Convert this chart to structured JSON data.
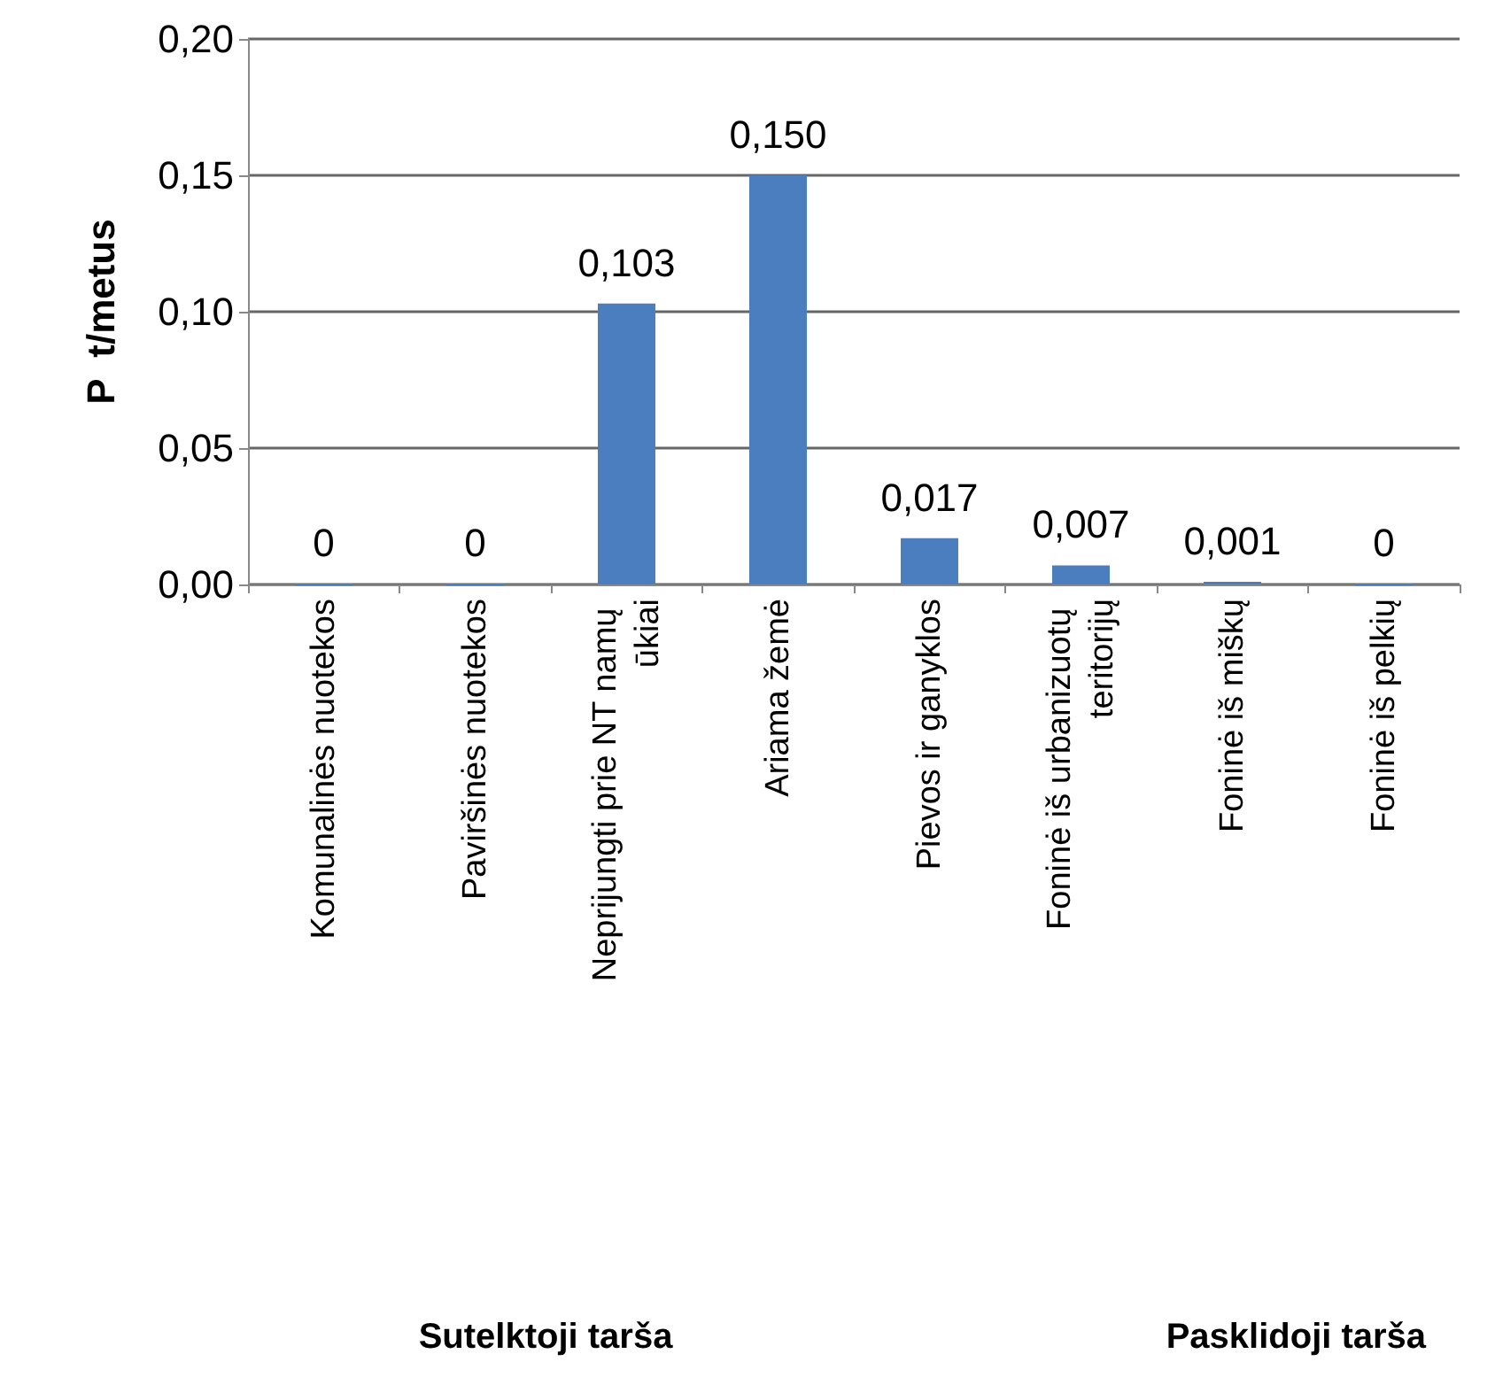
{
  "chart_data": {
    "type": "bar",
    "ylabel": "P  t/metus",
    "categories": [
      "Komunalinės nuotekos",
      "Paviršinės nuotekos",
      "Neprijungti prie NT namų ūkiai",
      "Ariama žemė",
      "Pievos ir ganyklos",
      "Foninė iš urbanizuotų teritorijų",
      "Foninė iš miškų",
      "Foninė iš pelkių"
    ],
    "values": [
      0,
      0,
      0.103,
      0.15,
      0.017,
      0.007,
      0.001,
      0
    ],
    "value_labels": [
      "0",
      "0",
      "0,103",
      "0,150",
      "0,017",
      "0,007",
      "0,001",
      "0"
    ],
    "color": "#4a7ebf",
    "ylim": [
      0,
      0.2
    ],
    "yticks": [
      {
        "value": 0,
        "label": "0,00"
      },
      {
        "value": 0.05,
        "label": "0,05"
      },
      {
        "value": 0.1,
        "label": "0,10"
      },
      {
        "value": 0.15,
        "label": "0,15"
      },
      {
        "value": 0.2,
        "label": "0,20"
      }
    ],
    "grid": "y",
    "annotations": [
      "Sutelktoji tarša",
      "Pasklidoji tarša"
    ]
  }
}
